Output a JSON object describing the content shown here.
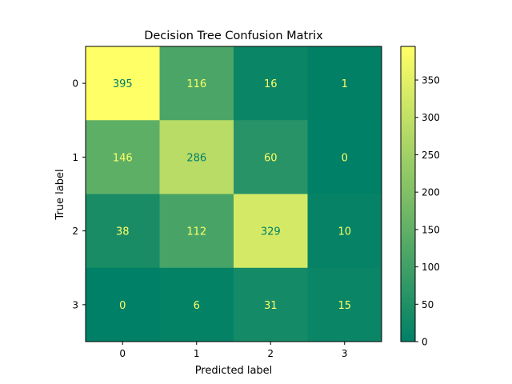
{
  "chart_data": {
    "type": "heatmap",
    "title": "Decision Tree Confusion Matrix",
    "xlabel": "Predicted label",
    "ylabel": "True label",
    "x_categories": [
      "0",
      "1",
      "2",
      "3"
    ],
    "y_categories": [
      "0",
      "1",
      "2",
      "3"
    ],
    "matrix": [
      [
        395,
        116,
        16,
        1
      ],
      [
        146,
        286,
        60,
        0
      ],
      [
        38,
        112,
        329,
        10
      ],
      [
        0,
        6,
        31,
        15
      ]
    ],
    "colormap": "summer",
    "color_low": "#008066",
    "color_high": "#ffff66",
    "colorbar": {
      "range": [
        0,
        395
      ],
      "ticks": [
        "0",
        "50",
        "100",
        "150",
        "200",
        "250",
        "300",
        "350"
      ]
    },
    "grid": false
  }
}
